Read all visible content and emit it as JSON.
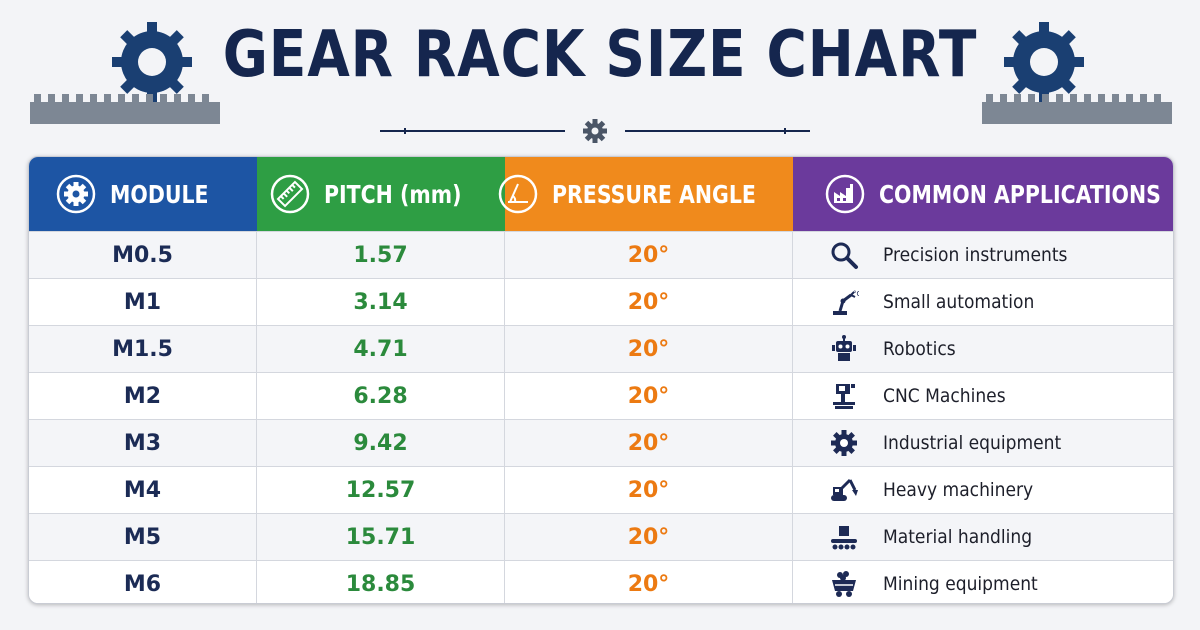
{
  "title": "GEAR RACK SIZE CHART",
  "headers": {
    "module": "MODULE",
    "pitch": "PITCH (mm)",
    "pressure_angle": "PRESSURE ANGLE",
    "applications": "COMMON APPLICATIONS"
  },
  "colors": {
    "module_header": "#1d55a4",
    "pitch_header": "#2e9e44",
    "angle_header": "#f08a1c",
    "applications_header": "#6b3a9c",
    "title": "#15264e"
  },
  "rows": [
    {
      "module": "M0.5",
      "pitch": "1.57",
      "angle": "20°",
      "application": "Precision instruments",
      "icon": "magnifier-icon"
    },
    {
      "module": "M1",
      "pitch": "3.14",
      "angle": "20°",
      "application": "Small automation",
      "icon": "robot-arm-icon"
    },
    {
      "module": "M1.5",
      "pitch": "4.71",
      "angle": "20°",
      "application": "Robotics",
      "icon": "robot-icon"
    },
    {
      "module": "M2",
      "pitch": "6.28",
      "angle": "20°",
      "application": "CNC Machines",
      "icon": "cnc-machine-icon"
    },
    {
      "module": "M3",
      "pitch": "9.42",
      "angle": "20°",
      "application": "Industrial equipment",
      "icon": "gear-icon"
    },
    {
      "module": "M4",
      "pitch": "12.57",
      "angle": "20°",
      "application": "Heavy machinery",
      "icon": "excavator-icon"
    },
    {
      "module": "M5",
      "pitch": "15.71",
      "angle": "20°",
      "application": "Material handling",
      "icon": "conveyor-icon"
    },
    {
      "module": "M6",
      "pitch": "18.85",
      "angle": "20°",
      "application": "Mining equipment",
      "icon": "mine-cart-icon"
    }
  ]
}
